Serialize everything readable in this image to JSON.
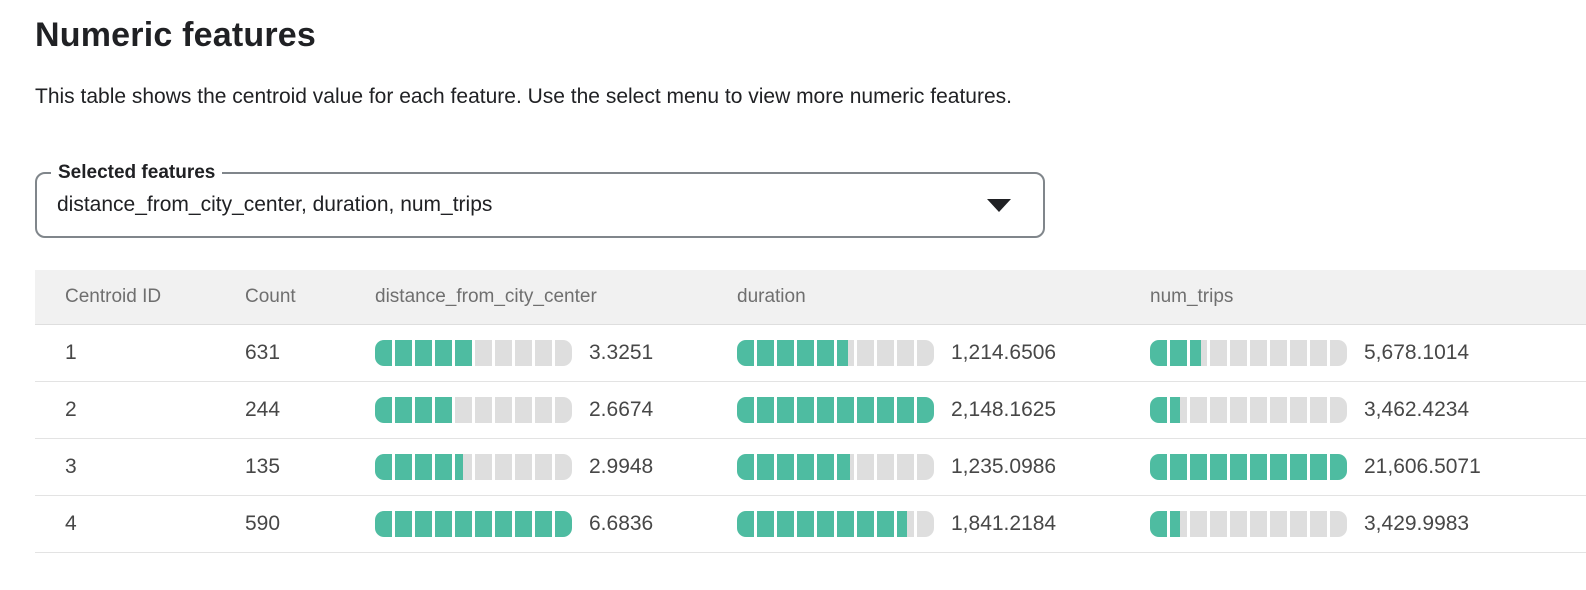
{
  "page": {
    "title": "Numeric features",
    "description": "This table shows the centroid value for each feature. Use the select menu to view more numeric features."
  },
  "select": {
    "label": "Selected features",
    "value": "distance_from_city_center, duration, num_trips",
    "icon": "triangle-down"
  },
  "colors": {
    "bar_fill": "#4ebca1",
    "bar_empty": "#dedede",
    "header_bg": "#f1f1f1"
  },
  "table": {
    "columns": [
      "Centroid ID",
      "Count",
      "distance_from_city_center",
      "duration",
      "num_trips"
    ],
    "bar_segments": 10,
    "rows": [
      {
        "centroid_id": "1",
        "count": "631",
        "distance": {
          "value": "3.3251",
          "fraction": 0.4975
        },
        "duration": {
          "value": "1,214.6506",
          "fraction": 0.5654
        },
        "num_trips": {
          "value": "5,678.1014",
          "fraction": 0.2628
        }
      },
      {
        "centroid_id": "2",
        "count": "244",
        "distance": {
          "value": "2.6674",
          "fraction": 0.3991
        },
        "duration": {
          "value": "2,148.1625",
          "fraction": 1
        },
        "num_trips": {
          "value": "3,462.4234",
          "fraction": 0.1602
        }
      },
      {
        "centroid_id": "3",
        "count": "135",
        "distance": {
          "value": "2.9948",
          "fraction": 0.4481
        },
        "duration": {
          "value": "1,235.0986",
          "fraction": 0.575
        },
        "num_trips": {
          "value": "21,606.5071",
          "fraction": 1
        }
      },
      {
        "centroid_id": "4",
        "count": "590",
        "distance": {
          "value": "6.6836",
          "fraction": 1
        },
        "duration": {
          "value": "1,841.2184",
          "fraction": 0.8571
        },
        "num_trips": {
          "value": "3,429.9983",
          "fraction": 0.1588
        }
      }
    ]
  }
}
